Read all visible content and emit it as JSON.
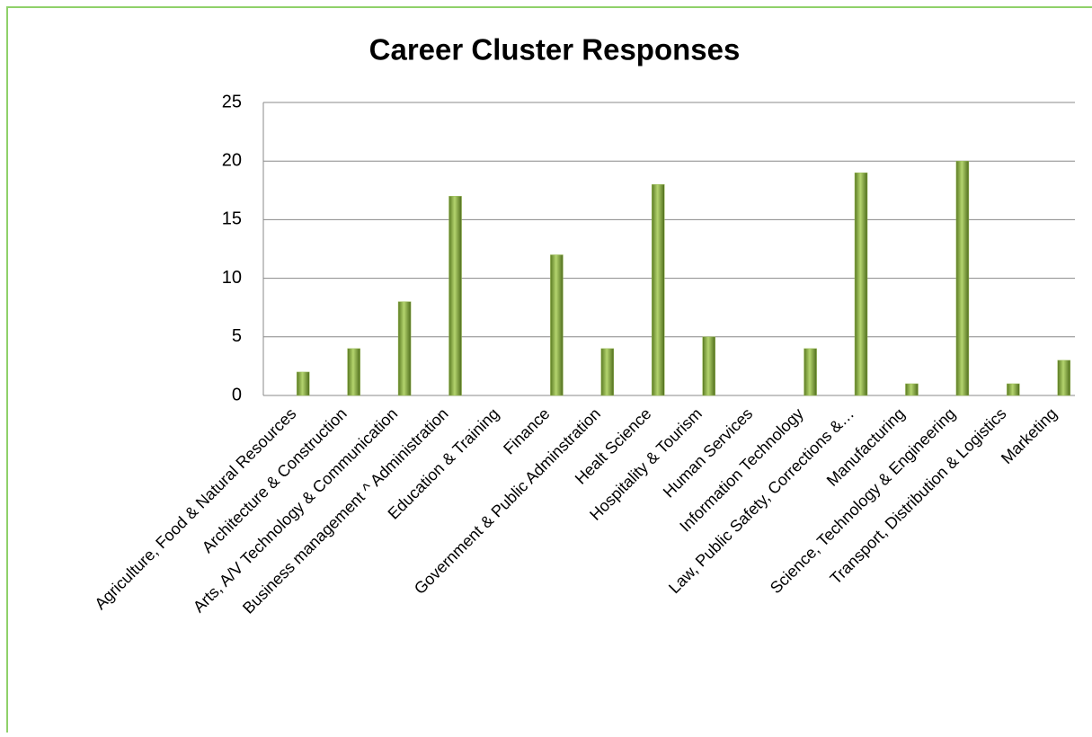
{
  "chart_data": {
    "type": "bar",
    "title": "Career Cluster Responses",
    "categories": [
      "Agriculture, Food & Natural Resources",
      "Architecture & Construction",
      "Arts, A/V Technology & Communication",
      "Business management ^ Administration",
      "Education & Training",
      "Finance",
      "Government & Public Adminstration",
      "Healt Science",
      "Hospitality & Tourism",
      "Human Services",
      "Information Technology",
      "Law, Public Safety, Corrections &…",
      "Manufacturing",
      "Science, Technology & Engineering",
      "Transport, Distribution & Logistics",
      "Marketing"
    ],
    "values": [
      2,
      4,
      8,
      17,
      0,
      12,
      4,
      18,
      5,
      0,
      4,
      19,
      1,
      20,
      1,
      3
    ],
    "color": "#9bbb59",
    "ylim": [
      0,
      25
    ],
    "yticks": [
      0,
      5,
      10,
      15,
      20,
      25
    ],
    "grid": true
  }
}
